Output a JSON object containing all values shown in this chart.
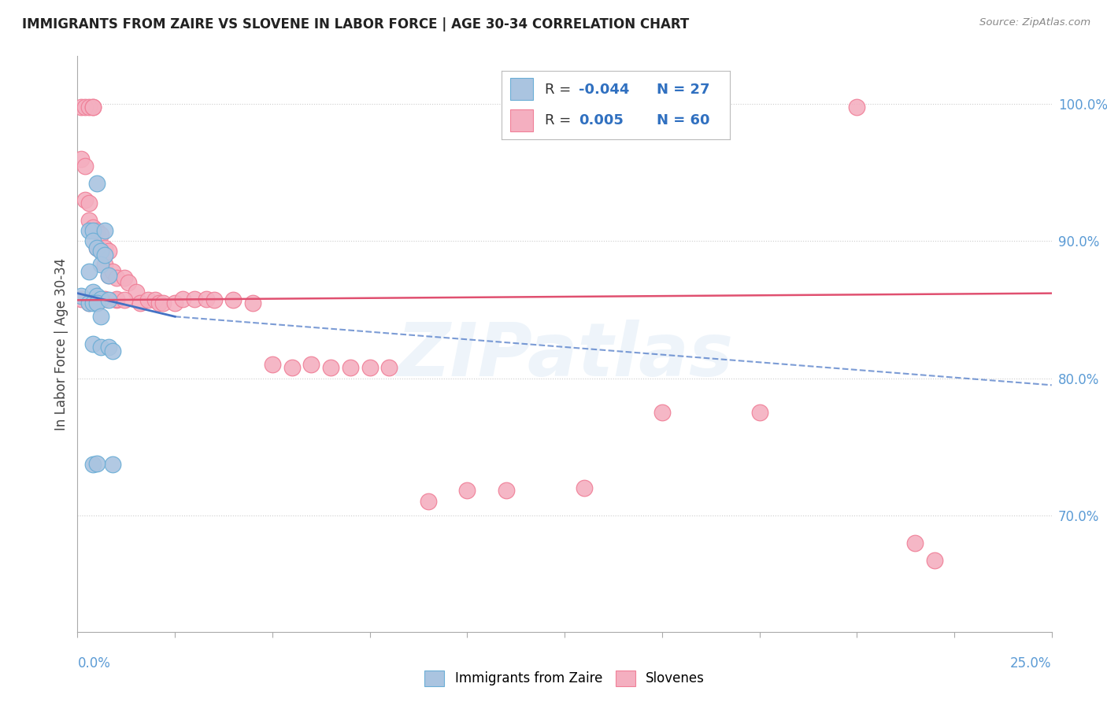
{
  "title": "IMMIGRANTS FROM ZAIRE VS SLOVENE IN LABOR FORCE | AGE 30-34 CORRELATION CHART",
  "source": "Source: ZipAtlas.com",
  "ylabel": "In Labor Force | Age 30-34",
  "xlim": [
    0.0,
    0.25
  ],
  "ylim": [
    0.615,
    1.035
  ],
  "ytick_values": [
    0.7,
    0.8,
    0.9,
    1.0
  ],
  "ytick_labels": [
    "70.0%",
    "80.0%",
    "90.0%",
    "100.0%"
  ],
  "zaire_color": "#aac4e0",
  "slovene_color": "#f4afc0",
  "zaire_edge_color": "#6baed6",
  "slovene_edge_color": "#f08098",
  "zaire_line_color": "#4472c4",
  "slovene_line_color": "#e05070",
  "watermark": "ZIPatlas",
  "legend_r_zaire": "-0.044",
  "legend_n_zaire": "27",
  "legend_r_slovene": "0.005",
  "legend_n_slovene": "60",
  "zaire_x": [
    0.001,
    0.003,
    0.004,
    0.004,
    0.005,
    0.005,
    0.006,
    0.006,
    0.007,
    0.007,
    0.008,
    0.003,
    0.004,
    0.005,
    0.006,
    0.003,
    0.004,
    0.005,
    0.006,
    0.008,
    0.004,
    0.006,
    0.008,
    0.009,
    0.009,
    0.004,
    0.005
  ],
  "zaire_y": [
    0.86,
    0.908,
    0.908,
    0.9,
    0.942,
    0.895,
    0.893,
    0.883,
    0.908,
    0.89,
    0.875,
    0.878,
    0.863,
    0.86,
    0.858,
    0.855,
    0.855,
    0.855,
    0.845,
    0.857,
    0.825,
    0.823,
    0.823,
    0.82,
    0.737,
    0.737,
    0.738
  ],
  "slovene_x": [
    0.001,
    0.002,
    0.003,
    0.004,
    0.004,
    0.001,
    0.002,
    0.002,
    0.003,
    0.003,
    0.004,
    0.005,
    0.005,
    0.006,
    0.006,
    0.007,
    0.007,
    0.008,
    0.008,
    0.009,
    0.01,
    0.01,
    0.012,
    0.013,
    0.015,
    0.016,
    0.018,
    0.02,
    0.021,
    0.022,
    0.025,
    0.027,
    0.03,
    0.033,
    0.035,
    0.04,
    0.045,
    0.05,
    0.055,
    0.06,
    0.065,
    0.07,
    0.075,
    0.08,
    0.09,
    0.1,
    0.11,
    0.13,
    0.15,
    0.175,
    0.2,
    0.215,
    0.22,
    0.001,
    0.003,
    0.004,
    0.005,
    0.007,
    0.01,
    0.012
  ],
  "slovene_y": [
    0.998,
    0.998,
    0.998,
    0.998,
    0.998,
    0.96,
    0.955,
    0.93,
    0.928,
    0.915,
    0.91,
    0.908,
    0.895,
    0.905,
    0.893,
    0.895,
    0.883,
    0.893,
    0.875,
    0.878,
    0.873,
    0.857,
    0.873,
    0.87,
    0.863,
    0.855,
    0.857,
    0.857,
    0.855,
    0.855,
    0.855,
    0.858,
    0.858,
    0.858,
    0.857,
    0.857,
    0.855,
    0.81,
    0.808,
    0.81,
    0.808,
    0.808,
    0.808,
    0.808,
    0.71,
    0.718,
    0.718,
    0.72,
    0.775,
    0.775,
    0.998,
    0.68,
    0.667,
    0.858,
    0.855,
    0.858,
    0.855,
    0.858,
    0.858,
    0.857
  ]
}
